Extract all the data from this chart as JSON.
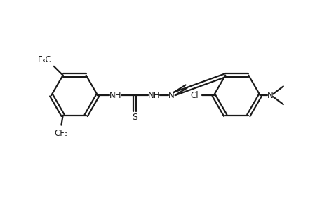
{
  "bg_color": "#ffffff",
  "line_color": "#1a1a1a",
  "line_width": 1.6,
  "figure_width": 4.6,
  "figure_height": 3.0,
  "dpi": 100,
  "font_size": 8.5,
  "font_family": "DejaVu Sans",
  "xlim": [
    0,
    10
  ],
  "ylim": [
    0,
    6.5
  ]
}
